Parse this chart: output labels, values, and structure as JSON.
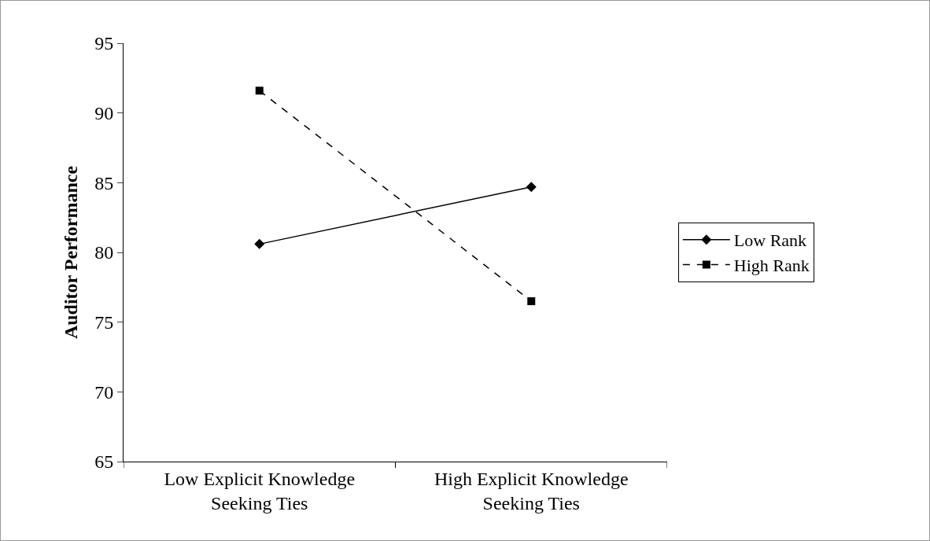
{
  "chart_data": {
    "type": "line",
    "ylabel": "Auditor Performance",
    "categories": [
      "Low Explicit Knowledge\nSeeking Ties",
      "High Explicit Knowledge\nSeeking Ties"
    ],
    "series": [
      {
        "name": "Low Rank",
        "color": "#000000",
        "values": [
          80.6,
          84.7
        ],
        "marker": "diamond",
        "line_style": "solid"
      },
      {
        "name": "High Rank",
        "color": "#000000",
        "values": [
          91.6,
          76.5
        ],
        "marker": "square",
        "line_style": "dashed"
      }
    ],
    "ylim": [
      65,
      95
    ],
    "yticks": [
      65,
      70,
      75,
      80,
      85,
      90,
      95
    ],
    "grid": false,
    "legend": "right"
  }
}
